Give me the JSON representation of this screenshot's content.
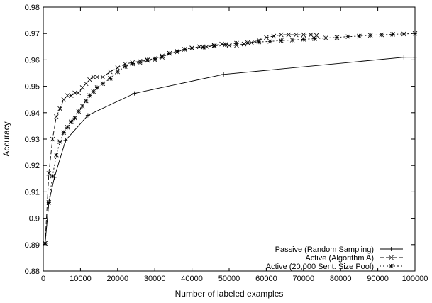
{
  "chart_data": {
    "type": "line",
    "title": "",
    "xlabel": "Number of labeled examples",
    "ylabel": "Accuracy",
    "xlim": [
      0,
      100000
    ],
    "ylim": [
      0.88,
      0.98
    ],
    "grid": false,
    "legend_position": "bottom-right",
    "x_ticks": [
      0,
      10000,
      20000,
      30000,
      40000,
      50000,
      60000,
      70000,
      80000,
      90000,
      100000
    ],
    "x_tick_labels": [
      "0",
      "10000",
      "20000",
      "30000",
      "40000",
      "50000",
      "60000",
      "70000",
      "80000",
      "90000",
      "100000"
    ],
    "y_ticks": [
      0.88,
      0.89,
      0.9,
      0.91,
      0.92,
      0.93,
      0.94,
      0.95,
      0.96,
      0.97,
      0.98
    ],
    "y_tick_labels": [
      "0.88",
      "0.89",
      "0.9",
      "0.91",
      "0.92",
      "0.93",
      "0.94",
      "0.95",
      "0.96",
      "0.97",
      "0.98"
    ],
    "series": [
      {
        "name": "Passive (Random Sampling)",
        "marker": "plus",
        "dash": "",
        "x": [
          500,
          1500,
          3000,
          6000,
          12000,
          24500,
          48500,
          97000,
          100000
        ],
        "y": [
          0.8905,
          0.906,
          0.9155,
          0.9295,
          0.939,
          0.9473,
          0.9545,
          0.961,
          0.961
        ]
      },
      {
        "name": "Active (Algorithm A)",
        "marker": "cross",
        "dash": "6,3",
        "x": [
          500,
          1500,
          2500,
          3500,
          4500,
          5500,
          6500,
          7500,
          8500,
          9500,
          10500,
          11500,
          12500,
          13500,
          14500,
          16000,
          18000,
          20000,
          22000,
          24000,
          26000,
          28000,
          30000,
          32000,
          34000,
          36000,
          38000,
          40000,
          42000,
          44000,
          46000,
          48000,
          50000,
          52000,
          54000,
          56000,
          58000,
          60000,
          62000,
          64000,
          66000,
          68000,
          70000,
          72000,
          73500
        ],
        "y": [
          0.8905,
          0.917,
          0.93,
          0.9385,
          0.9415,
          0.945,
          0.9465,
          0.9465,
          0.9475,
          0.9475,
          0.9495,
          0.951,
          0.9525,
          0.9535,
          0.9535,
          0.9535,
          0.9555,
          0.957,
          0.9585,
          0.959,
          0.9595,
          0.9598,
          0.96,
          0.961,
          0.9625,
          0.963,
          0.964,
          0.9645,
          0.965,
          0.965,
          0.9655,
          0.966,
          0.9655,
          0.9655,
          0.966,
          0.9665,
          0.9675,
          0.9685,
          0.969,
          0.9695,
          0.9695,
          0.9695,
          0.9695,
          0.9695,
          0.9693
        ]
      },
      {
        "name": "Active (20,000 Sent. Size Pool)",
        "marker": "star",
        "dash": "2,3",
        "x": [
          500,
          1500,
          2500,
          3500,
          4500,
          5500,
          6500,
          7500,
          8500,
          9500,
          10500,
          11500,
          12500,
          13500,
          14500,
          16000,
          18000,
          20000,
          22000,
          24000,
          26000,
          28000,
          30000,
          32000,
          34000,
          36000,
          38000,
          40000,
          43000,
          46000,
          49000,
          52000,
          55000,
          58000,
          61000,
          64000,
          67000,
          70000,
          73000,
          76000,
          79000,
          82000,
          85000,
          88000,
          91000,
          94000,
          97000,
          100000
        ],
        "y": [
          0.8905,
          0.906,
          0.916,
          0.924,
          0.929,
          0.9325,
          0.9345,
          0.9365,
          0.938,
          0.9405,
          0.9425,
          0.9445,
          0.9465,
          0.948,
          0.9495,
          0.951,
          0.953,
          0.9555,
          0.9575,
          0.9585,
          0.959,
          0.96,
          0.9605,
          0.9615,
          0.9625,
          0.9633,
          0.964,
          0.9645,
          0.9648,
          0.9653,
          0.9658,
          0.9663,
          0.9665,
          0.9668,
          0.967,
          0.9673,
          0.9675,
          0.9678,
          0.968,
          0.9683,
          0.9685,
          0.9688,
          0.969,
          0.9693,
          0.9695,
          0.9697,
          0.9698,
          0.97
        ]
      }
    ]
  }
}
